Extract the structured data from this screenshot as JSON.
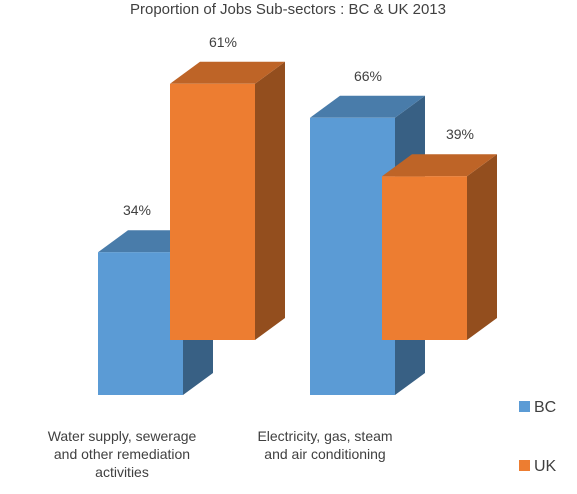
{
  "chart_data": {
    "type": "bar",
    "title": "Proportion of Jobs Sub-sectors : BC & UK 2013",
    "categories": [
      [
        "Water supply, sewerage",
        "and other remediation",
        "activities"
      ],
      [
        "Electricity, gas, steam",
        "and air conditioning"
      ]
    ],
    "series": [
      {
        "name": "BC",
        "values": [
          34,
          66
        ],
        "labels": [
          "34%",
          "66%"
        ],
        "color": "#5b9bd5"
      },
      {
        "name": "UK",
        "values": [
          61,
          39
        ],
        "labels": [
          "61%",
          "39%"
        ],
        "color": "#ed7d31"
      }
    ],
    "ylim": [
      0,
      100
    ],
    "three_d": true,
    "grid": false,
    "legend_position": "right"
  }
}
